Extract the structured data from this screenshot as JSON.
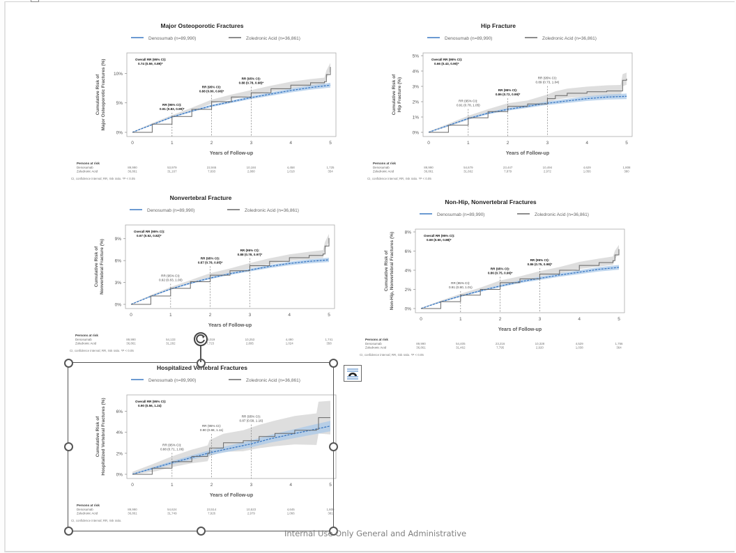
{
  "footer": {
    "classification_label": "Internal Use Only General and Administrative"
  },
  "selection": {
    "rotate_icon": "rotate-icon",
    "layout_options_icon": "layout-options-icon"
  },
  "colors": {
    "denosumab": "#3a78c3",
    "denosumab_ci": "#a9c8e8",
    "zoledronic": "#666666",
    "zoledronic_ci": "#d8d8d8",
    "frame": "#aaaaaa"
  },
  "chart_data": [
    {
      "id": "mof",
      "type": "line",
      "title": "Major Osteoporotic Fractures",
      "xlabel": "Years of Follow-up",
      "ylabel_lines": [
        "Cumulative Risk of",
        "Major Osteoporotic Fractures (%)"
      ],
      "legend": [
        "Denosumab (n=89,990)",
        "Zoledronic Acid (n=36,861)"
      ],
      "legend_position": "top-center",
      "xlim": [
        0,
        5
      ],
      "ylim": [
        0,
        13
      ],
      "x_ticks": [
        "0",
        "1",
        "2",
        "3",
        "4",
        "5"
      ],
      "y_ticks": [
        {
          "v": 0,
          "label": "0%"
        },
        {
          "v": 5,
          "label": "5%"
        },
        {
          "v": 10,
          "label": "10%"
        }
      ],
      "overall_rr": [
        "Overall RR (95% CI):",
        "0.74 (0.59, 0.89)*"
      ],
      "rr_annotations": [
        {
          "x": 1,
          "y": 3.8,
          "lines": [
            "RR (95% CI):",
            "0.91 (0.83, 0.99)*"
          ],
          "bold": true
        },
        {
          "x": 2,
          "y": 6.8,
          "lines": [
            "RR (95% CI):",
            "0.88 (0.80, 0.96)*"
          ],
          "bold": true
        },
        {
          "x": 3,
          "y": 8.2,
          "lines": [
            "RR (95% CI):",
            "0.88 (0.78, 0.98)*"
          ],
          "bold": true
        }
      ],
      "series": [
        {
          "name": "Denosumab",
          "x": [
            0,
            0.5,
            1,
            1.5,
            2,
            2.5,
            3,
            3.5,
            4,
            4.5,
            5
          ],
          "y": [
            0,
            1.3,
            2.6,
            3.6,
            4.5,
            5.2,
            5.9,
            6.5,
            7.1,
            7.6,
            8.0
          ],
          "ci_width": 0.4
        },
        {
          "name": "Zoledronic Acid",
          "x": [
            0,
            0.5,
            1,
            1.5,
            2,
            2.5,
            3,
            3.5,
            4,
            4.5,
            4.85,
            4.9,
            5
          ],
          "y": [
            0,
            1.4,
            2.7,
            3.9,
            5.2,
            6.0,
            6.7,
            7.4,
            8.0,
            8.4,
            8.6,
            9.8,
            11.1
          ],
          "ci_width": 0.7
        }
      ],
      "risk_table": {
        "header": "Persons at risk",
        "rows": [
          {
            "label": "Denosumab",
            "values": [
              "89,990",
              "53,979",
              "22,946",
              "10,184",
              "4,458",
              "1,725"
            ]
          },
          {
            "label": "Zoledronic Acid",
            "values": [
              "36,861",
              "31,167",
              "7,693",
              "2,880",
              "1,018",
              "354"
            ]
          }
        ]
      },
      "footnote": "CI, confidence interval; RR, risk ratio. *P < 0.05"
    },
    {
      "id": "hip",
      "type": "line",
      "title": "Hip Fracture",
      "xlabel": "Years of Follow-up",
      "ylabel_lines": [
        "Cumulative Risk of",
        "Hip Fracture (%)"
      ],
      "legend": [
        "Denosumab (n=89,990)",
        "Zoledronic Acid (n=36,861)"
      ],
      "legend_position": "top-center",
      "xlim": [
        0,
        5
      ],
      "ylim": [
        0,
        5
      ],
      "x_ticks": [
        "0",
        "1",
        "2",
        "3",
        "4",
        "5"
      ],
      "y_ticks": [
        {
          "v": 0,
          "label": "0%"
        },
        {
          "v": 1,
          "label": "1%"
        },
        {
          "v": 2,
          "label": "2%"
        },
        {
          "v": 3,
          "label": "3%"
        },
        {
          "v": 4,
          "label": "4%"
        },
        {
          "v": 5,
          "label": "5%"
        }
      ],
      "overall_rr": [
        "Overall RR (95% CI):",
        "0.66 (0.43, 0.90)*"
      ],
      "rr_annotations": [
        {
          "x": 1,
          "y": 1.7,
          "lines": [
            "RR (95% CI):",
            "0.91 (0.78, 1.05)"
          ],
          "bold": false
        },
        {
          "x": 2,
          "y": 2.4,
          "lines": [
            "RR (95% CI):",
            "0.86 (0.72, 0.99)*"
          ],
          "bold": true
        },
        {
          "x": 3,
          "y": 3.2,
          "lines": [
            "RR (95% CI):",
            "0.89 (0.73, 1.04)"
          ],
          "bold": false
        }
      ],
      "series": [
        {
          "name": "Denosumab",
          "x": [
            0,
            0.5,
            1,
            1.5,
            2,
            2.5,
            3,
            3.5,
            4,
            4.5,
            5
          ],
          "y": [
            0,
            0.45,
            0.9,
            1.25,
            1.5,
            1.7,
            1.9,
            2.05,
            2.2,
            2.3,
            2.35
          ],
          "ci_width": 0.18
        },
        {
          "name": "Zoledronic Acid",
          "x": [
            0,
            0.5,
            1,
            1.5,
            2,
            2.5,
            3,
            3.2,
            3.5,
            4,
            4.5,
            4.85,
            4.9,
            5
          ],
          "y": [
            0,
            0.47,
            0.95,
            1.35,
            1.7,
            1.85,
            2.2,
            2.4,
            2.55,
            2.65,
            2.7,
            2.7,
            3.4,
            3.5
          ],
          "ci_width": 0.4
        }
      ],
      "risk_table": {
        "header": "Persons at risk",
        "rows": [
          {
            "label": "Denosumab",
            "values": [
              "89,990",
              "54,679",
              "23,447",
              "10,494",
              "4,629",
              "1,808"
            ]
          },
          {
            "label": "Zoledronic Acid",
            "values": [
              "36,861",
              "31,662",
              "7,879",
              "2,972",
              "1,056",
              "380"
            ]
          }
        ]
      },
      "footnote": "CI, confidence interval; RR, risk ratio. *P < 0.05"
    },
    {
      "id": "nvf",
      "type": "line",
      "title": "Nonvertebral Fracture",
      "xlabel": "Years of Follow-up",
      "ylabel_lines": [
        "Cumulative Risk of",
        "Nonvertebral Fracture (%)"
      ],
      "legend": [
        "Denosumab (n=89,990)",
        "Zoledronic Acid (n=36,861)"
      ],
      "legend_position": "top-center",
      "xlim": [
        0,
        5
      ],
      "ylim": [
        0,
        10.5
      ],
      "x_ticks": [
        "0",
        "1",
        "2",
        "3",
        "4",
        "5"
      ],
      "y_ticks": [
        {
          "v": 0,
          "label": "0%"
        },
        {
          "v": 3,
          "label": "3%"
        },
        {
          "v": 6,
          "label": "6%"
        },
        {
          "v": 9,
          "label": "9%"
        }
      ],
      "overall_rr": [
        "Overall RR (95% CI):",
        "0.67 (0.52, 0.82)*"
      ],
      "rr_annotations": [
        {
          "x": 1,
          "y": 3.2,
          "lines": [
            "RR (95% CI):",
            "0.92 (0.83, 1.00)"
          ],
          "bold": false
        },
        {
          "x": 2,
          "y": 5.6,
          "lines": [
            "RR (95% CI):",
            "0.87 (0.78, 0.95)*"
          ],
          "bold": true
        },
        {
          "x": 3,
          "y": 6.7,
          "lines": [
            "RR (95% CI):",
            "0.88 (0.78, 0.97)*"
          ],
          "bold": true
        }
      ],
      "series": [
        {
          "name": "Denosumab",
          "x": [
            0,
            0.5,
            1,
            1.5,
            2,
            2.5,
            3,
            3.5,
            4,
            4.5,
            5
          ],
          "y": [
            0,
            1.1,
            2.1,
            2.9,
            3.6,
            4.2,
            4.7,
            5.2,
            5.6,
            5.9,
            6.1
          ],
          "ci_width": 0.3
        },
        {
          "name": "Zoledronic Acid",
          "x": [
            0,
            0.5,
            1,
            1.5,
            2,
            2.5,
            3,
            3.5,
            4,
            4.5,
            4.85,
            4.9,
            5
          ],
          "y": [
            0,
            1.15,
            2.2,
            3.1,
            4.0,
            4.6,
            5.3,
            5.9,
            6.4,
            6.7,
            6.9,
            8.0,
            9.1
          ],
          "ci_width": 0.55
        }
      ],
      "risk_table": {
        "header": "Persons at risk",
        "rows": [
          {
            "label": "Denosumab",
            "values": [
              "89,990",
              "54,133",
              "23,019",
              "10,253",
              "4,490",
              "1,741"
            ]
          },
          {
            "label": "Zoledronic Acid",
            "values": [
              "36,861",
              "31,282",
              "7,723",
              "2,895",
              "1,024",
              "358"
            ]
          }
        ]
      },
      "footnote": "CI, confidence interval; RR, risk ratio. *P < 0.05"
    },
    {
      "id": "nhnv",
      "type": "line",
      "title": "Non-Hip, Nonvertebral Fractures",
      "xlabel": "Years of Follow-up",
      "ylabel_lines": [
        "Cumulative Risk of",
        "Non-Hip, Nonvertebral Fractures (%)"
      ],
      "legend": [
        "Denosumab (n=89,990)",
        "Zoledronic Acid (n=36,861)"
      ],
      "legend_position": "top-center",
      "xlim": [
        0,
        5
      ],
      "ylim": [
        0,
        8
      ],
      "x_ticks": [
        "0",
        "1",
        "2",
        "3",
        "4",
        "5"
      ],
      "y_ticks": [
        {
          "v": 0,
          "label": "0%"
        },
        {
          "v": 2,
          "label": "2%"
        },
        {
          "v": 4,
          "label": "4%"
        },
        {
          "v": 6,
          "label": "6%"
        },
        {
          "v": 8,
          "label": "8%"
        }
      ],
      "overall_rr": [
        "Overall RR (95% CI):",
        "0.69 (0.50, 0.88)*"
      ],
      "rr_annotations": [
        {
          "x": 1,
          "y": 2.1,
          "lines": [
            "RR (95% CI):",
            "0.91 (0.80, 1.01)"
          ],
          "bold": false
        },
        {
          "x": 2,
          "y": 3.6,
          "lines": [
            "RR (95% CI):",
            "0.86 (0.75, 0.96)*"
          ],
          "bold": true
        },
        {
          "x": 3,
          "y": 4.5,
          "lines": [
            "RR (95% CI):",
            "0.86 (0.75, 0.98)*"
          ],
          "bold": true
        }
      ],
      "series": [
        {
          "name": "Denosumab",
          "x": [
            0,
            0.5,
            1,
            1.5,
            2,
            2.5,
            3,
            3.5,
            4,
            4.5,
            5
          ],
          "y": [
            0,
            0.7,
            1.3,
            1.85,
            2.35,
            2.8,
            3.15,
            3.5,
            3.8,
            4.1,
            4.3
          ],
          "ci_width": 0.25
        },
        {
          "name": "Zoledronic Acid",
          "x": [
            0,
            0.5,
            1,
            1.5,
            2,
            2.5,
            3,
            3.5,
            4,
            4.5,
            4.85,
            4.9,
            5
          ],
          "y": [
            0,
            0.72,
            1.4,
            2.0,
            2.7,
            3.1,
            3.6,
            4.0,
            4.5,
            4.8,
            5.0,
            5.6,
            6.2
          ],
          "ci_width": 0.45
        }
      ],
      "risk_table": {
        "header": "Persons at risk",
        "rows": [
          {
            "label": "Denosumab",
            "values": [
              "89,990",
              "54,405",
              "23,216",
              "10,328",
              "4,529",
              "1,756"
            ]
          },
          {
            "label": "Zoledronic Acid",
            "values": [
              "36,861",
              "31,462",
              "7,795",
              "2,920",
              "1,038",
              "364"
            ]
          }
        ]
      },
      "footnote": "CI, confidence interval; RR, risk ratio. *P < 0.05"
    },
    {
      "id": "hvf",
      "type": "line",
      "title": "Hospitalized Vertebral Fractures",
      "xlabel": "Years of Follow-up",
      "ylabel_lines": [
        "Cumulative Risk of",
        "Hospitalized Vertebral Fractures (%)"
      ],
      "legend": [
        "Denosumab (n=89,990)",
        "Zoledronic Acid (n=36,861)"
      ],
      "legend_position": "top-center",
      "xlim": [
        0,
        5
      ],
      "ylim": [
        0,
        7.3
      ],
      "x_ticks": [
        "0",
        "1",
        "2",
        "3",
        "4",
        "5"
      ],
      "y_ticks": [
        {
          "v": 0,
          "label": "0%"
        },
        {
          "v": 2,
          "label": "2%"
        },
        {
          "v": 4,
          "label": "4%"
        },
        {
          "v": 6,
          "label": "6%"
        }
      ],
      "overall_rr": [
        "Overall RR (95% CI):",
        "0.90 (0.56, 1.24)"
      ],
      "rr_annotations": [
        {
          "x": 1,
          "y": 2.3,
          "lines": [
            "RR (95% CI):",
            "0.88 (0.71, 1.06)"
          ],
          "bold": false
        },
        {
          "x": 2,
          "y": 4.1,
          "lines": [
            "RR (95% CI):",
            "0.90 (0.68, 1.11)"
          ],
          "bold": false
        },
        {
          "x": 3,
          "y": 5.0,
          "lines": [
            "RR (95% CI):",
            "0.87 (0.58, 1.16)"
          ],
          "bold": false
        }
      ],
      "series": [
        {
          "name": "Denosumab",
          "x": [
            0,
            0.5,
            1,
            1.5,
            2,
            2.5,
            3,
            3.5,
            4,
            4.5,
            5
          ],
          "y": [
            0,
            0.55,
            1.1,
            1.6,
            2.1,
            2.5,
            2.9,
            3.4,
            3.8,
            4.2,
            4.6
          ],
          "ci_width": 0.5
        },
        {
          "name": "Zoledronic Acid",
          "x": [
            0,
            0.5,
            1,
            1.5,
            1.9,
            1.95,
            2.3,
            2.8,
            3.2,
            3.6,
            4.1,
            4.65,
            4.7,
            5
          ],
          "y": [
            0,
            0.58,
            1.2,
            1.7,
            2.0,
            2.5,
            3.0,
            3.2,
            3.6,
            3.9,
            4.2,
            4.3,
            5.4,
            5.4
          ],
          "ci_width": 1.6
        }
      ],
      "risk_table": {
        "header": "Persons at risk",
        "rows": [
          {
            "label": "Denosumab",
            "values": [
              "89,990",
              "54,624",
              "23,514",
              "10,523",
              "4,645",
              "1,809"
            ]
          },
          {
            "label": "Zoledronic Acid",
            "values": [
              "36,861",
              "31,749",
              "7,926",
              "2,979",
              "1,066",
              "381"
            ]
          }
        ]
      },
      "footnote": "CI, confidence interval; RR, risk ratio."
    }
  ]
}
